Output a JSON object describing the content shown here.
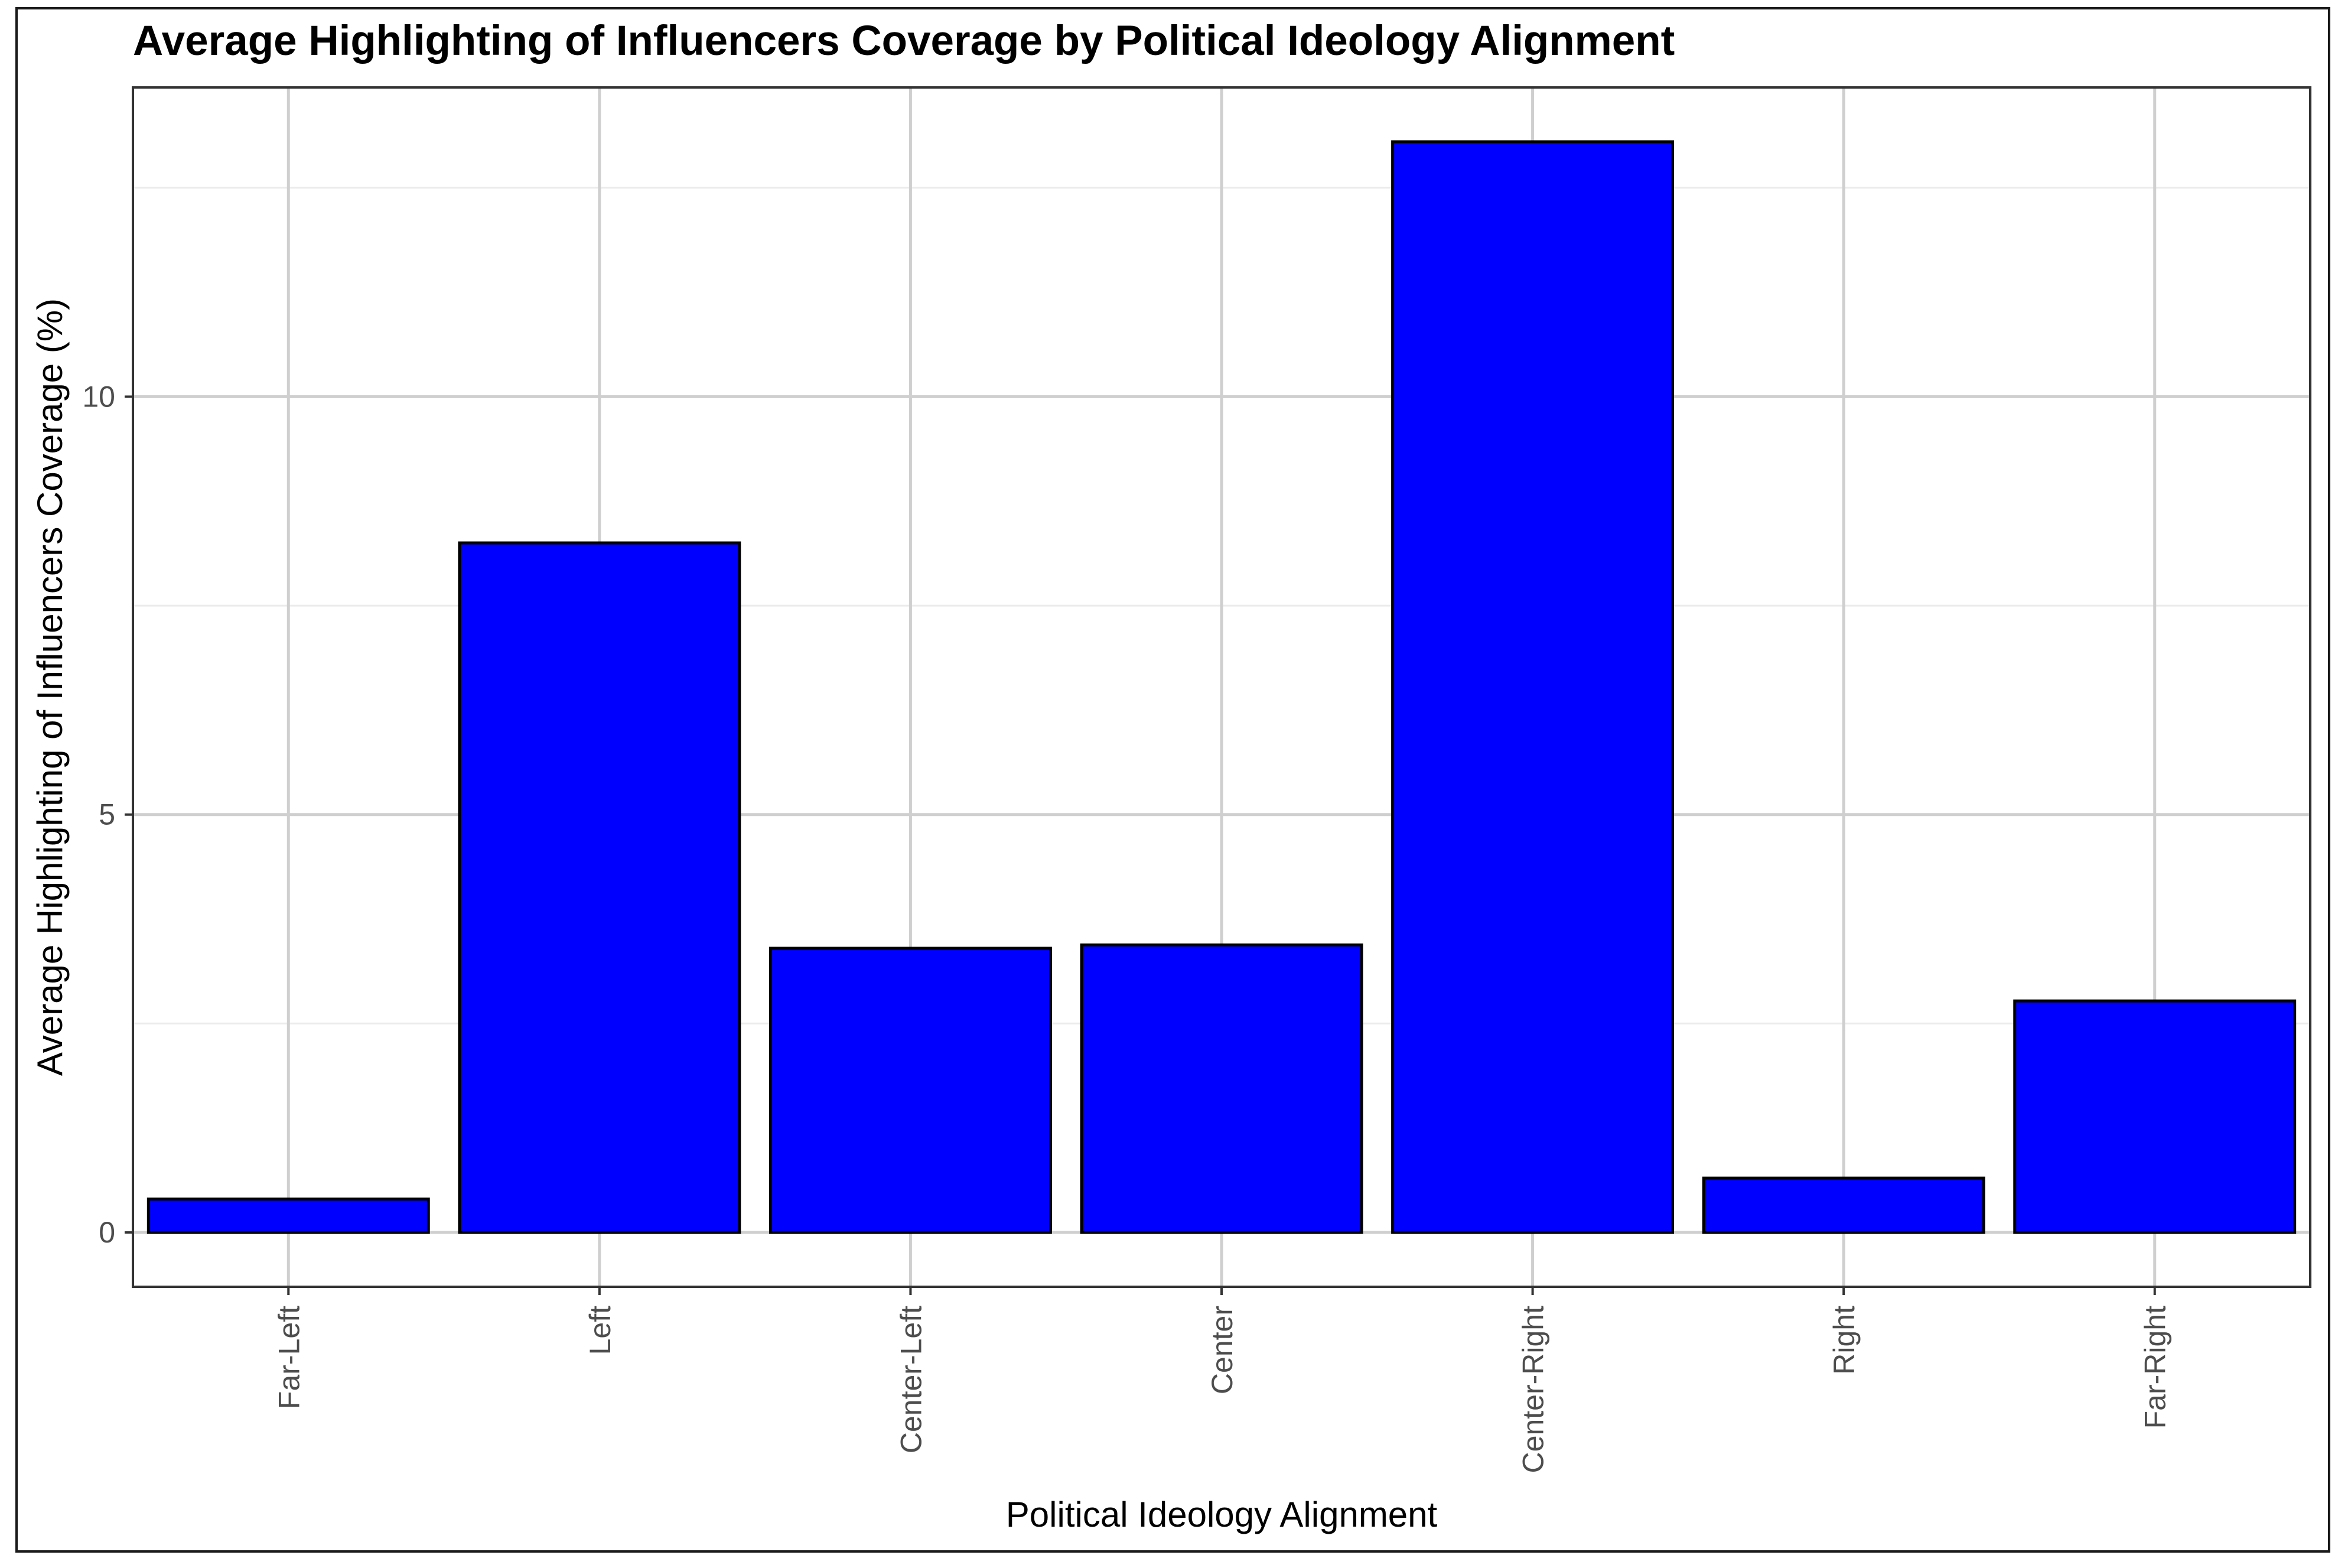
{
  "chart_data": {
    "type": "bar",
    "title": "Average Highlighting of Influencers Coverage by Political Ideology Alignment",
    "xlabel": "Political Ideology Alignment",
    "ylabel": "Average Highlighting of Influencers Coverage (%)",
    "categories": [
      "Far-Left",
      "Left",
      "Center-Left",
      "Center",
      "Center-Right",
      "Right",
      "Far-Right"
    ],
    "values": [
      0.4,
      8.25,
      3.4,
      3.44,
      13.05,
      0.65,
      2.77
    ],
    "ylim": [
      -0.65,
      13.7
    ],
    "yticks": [
      0,
      5,
      10
    ],
    "ytick_labels": [
      "0",
      "5",
      "10"
    ],
    "grid": true,
    "legend": "none",
    "bar_color": "#0000ff",
    "bar_outline": "#000000"
  }
}
